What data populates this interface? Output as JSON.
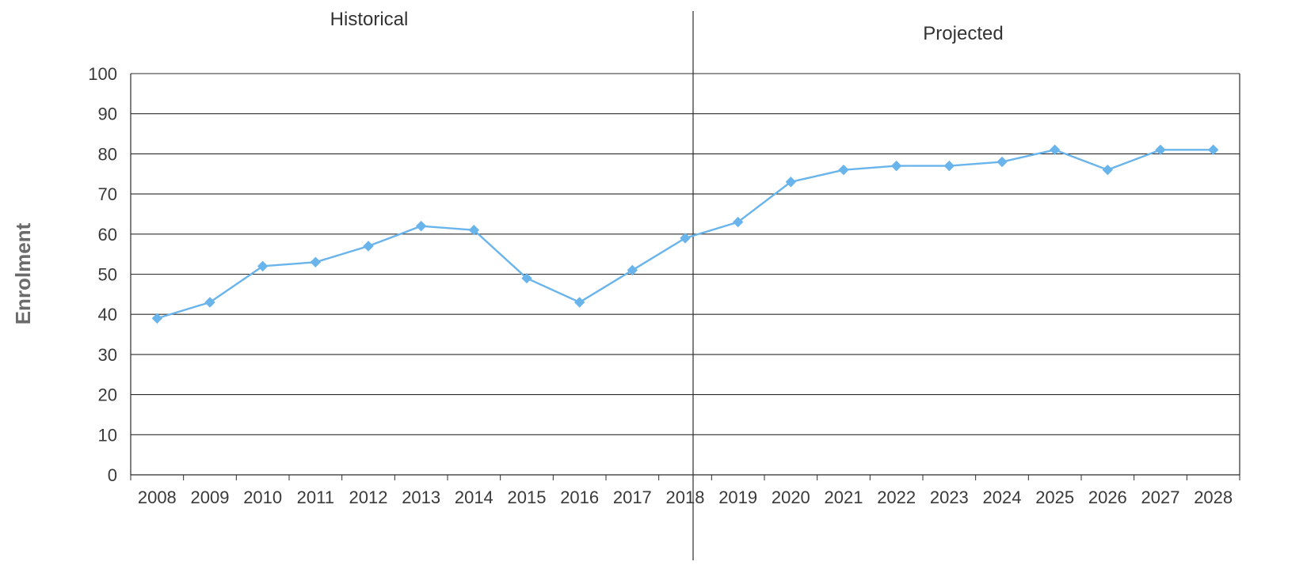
{
  "chart_data": {
    "type": "line",
    "ylabel": "Enrolment",
    "xlabel": "",
    "ylim": [
      0,
      100
    ],
    "yticks": [
      0,
      10,
      20,
      30,
      40,
      50,
      60,
      70,
      80,
      90,
      100
    ],
    "grid": true,
    "region_labels": [
      "Historical",
      "Projected"
    ],
    "divider_after_category": "2018",
    "line_color": "#6AB4EC",
    "categories": [
      "2008",
      "2009",
      "2010",
      "2011",
      "2012",
      "2013",
      "2014",
      "2015",
      "2016",
      "2017",
      "2018",
      "2019",
      "2020",
      "2021",
      "2022",
      "2023",
      "2024",
      "2025",
      "2026",
      "2027",
      "2028"
    ],
    "series": [
      {
        "values": [
          39,
          43,
          52,
          53,
          57,
          62,
          61,
          49,
          43,
          51,
          59,
          63,
          73,
          76,
          77,
          77,
          78,
          81,
          76,
          81,
          81
        ]
      }
    ]
  }
}
